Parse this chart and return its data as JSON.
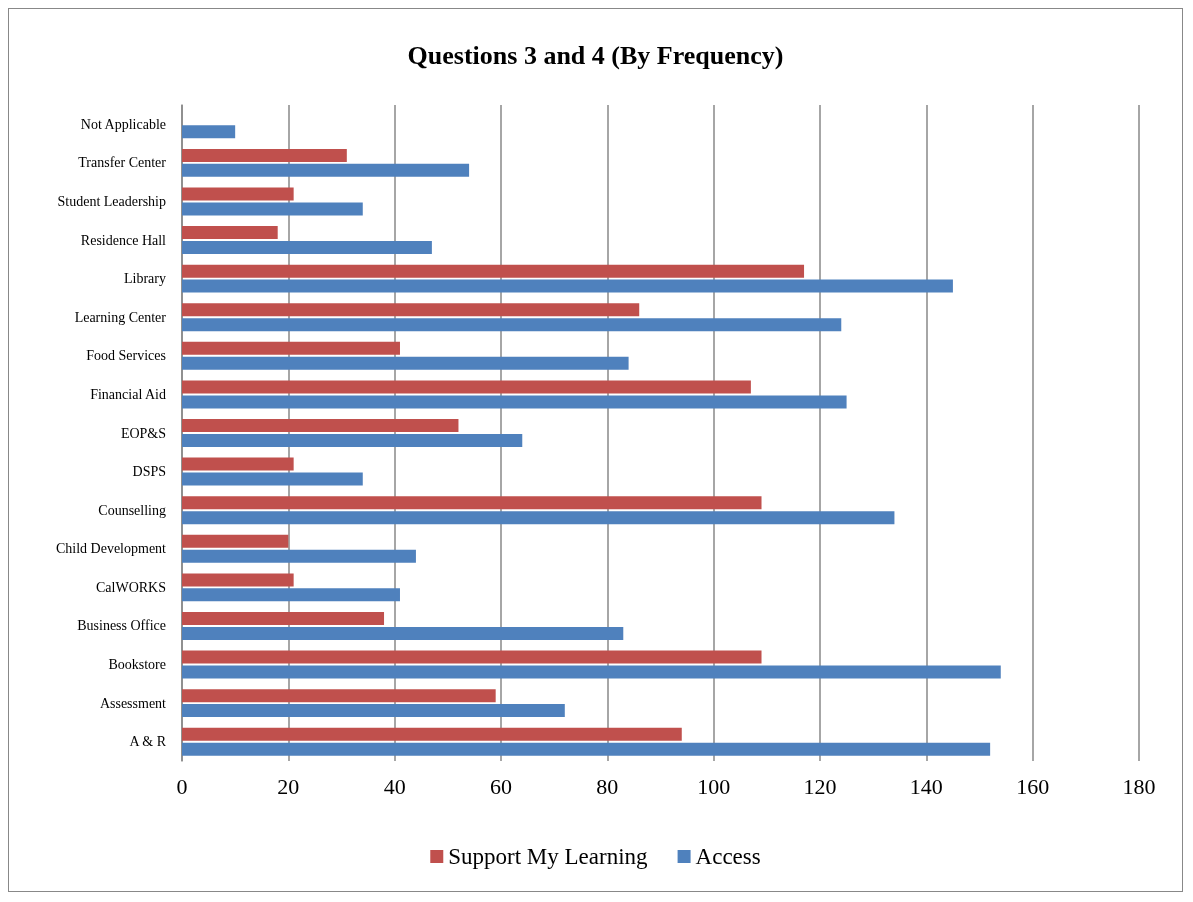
{
  "chart_data": {
    "type": "bar",
    "orientation": "horizontal",
    "title": "Questions 3 and 4 (By Frequency)",
    "categories": [
      "Not Applicable",
      "Transfer Center",
      "Student Leadership",
      "Residence Hall",
      "Library",
      "Learning Center",
      "Food Services",
      "Financial Aid",
      "EOP&S",
      "DSPS",
      "Counselling",
      "Child Development",
      "CalWORKS",
      "Business Office",
      "Bookstore",
      "Assessment",
      "A & R"
    ],
    "series": [
      {
        "name": "Support My Learning",
        "color": "#c0504d",
        "values": [
          null,
          31,
          21,
          18,
          117,
          86,
          41,
          107,
          52,
          21,
          109,
          20,
          21,
          38,
          109,
          59,
          94
        ]
      },
      {
        "name": "Access",
        "color": "#4f81bd",
        "values": [
          10,
          54,
          34,
          47,
          145,
          124,
          84,
          125,
          64,
          34,
          134,
          44,
          41,
          83,
          154,
          72,
          152
        ]
      }
    ],
    "xlim": [
      0,
      180
    ],
    "xticks": [
      0,
      20,
      40,
      60,
      80,
      100,
      120,
      140,
      160,
      180
    ],
    "grid": "x",
    "legend": "bottom"
  }
}
